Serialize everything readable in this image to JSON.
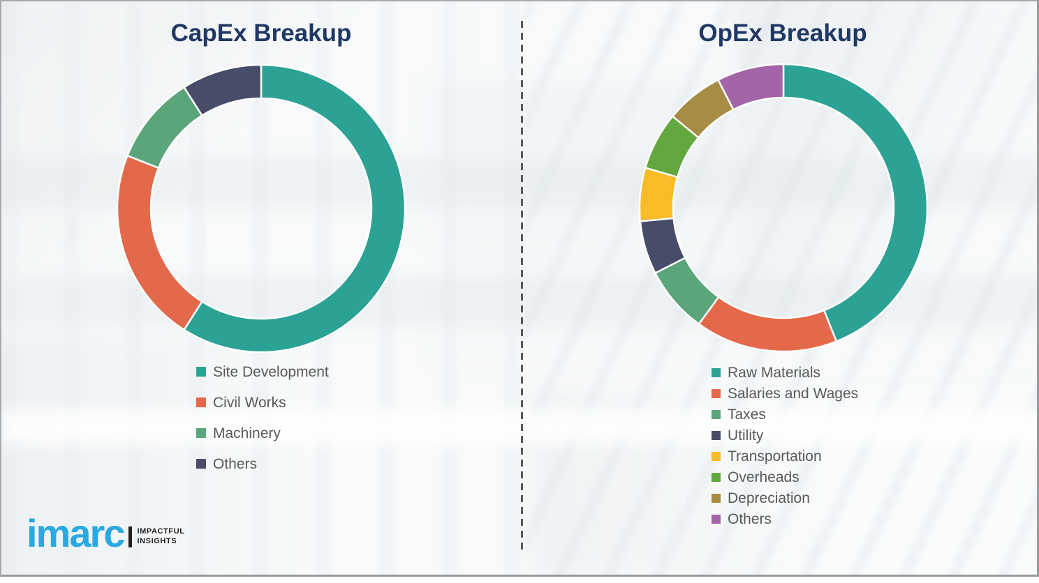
{
  "style": {
    "title_color": "#1f3864",
    "legend_text_color": "#595959",
    "divider_color": "#58595b",
    "background_color": "#f7f9fa",
    "segment_gap_color": "#ffffff"
  },
  "chart_data": [
    {
      "type": "pie",
      "variant": "donut",
      "title": "CapEx Breakup",
      "legend_position": "below-left",
      "unit": "percent-estimated",
      "labels": [
        "Site Development",
        "Civil Works",
        "Machinery",
        "Others"
      ],
      "values": [
        59,
        22,
        10,
        9
      ],
      "colors": [
        "#2ca294",
        "#e4694b",
        "#5aa57a",
        "#474d68"
      ]
    },
    {
      "type": "pie",
      "variant": "donut",
      "title": "OpEx Breakup",
      "legend_position": "below-left",
      "unit": "percent-estimated",
      "labels": [
        "Raw Materials",
        "Salaries and Wages",
        "Taxes",
        "Utility",
        "Transportation",
        "Overheads",
        "Depreciation",
        "Others"
      ],
      "values": [
        44,
        16,
        7.5,
        6,
        6,
        6.5,
        6.5,
        7.5
      ],
      "colors": [
        "#2ca294",
        "#e4694b",
        "#5aa57a",
        "#474d68",
        "#f9bb28",
        "#62a83e",
        "#a78c44",
        "#a365a7"
      ]
    }
  ],
  "logo": {
    "brand": "imarc",
    "brand_color": "#29a9e1",
    "tagline_line1": "IMPACTFUL",
    "tagline_line2": "INSIGHTS"
  }
}
